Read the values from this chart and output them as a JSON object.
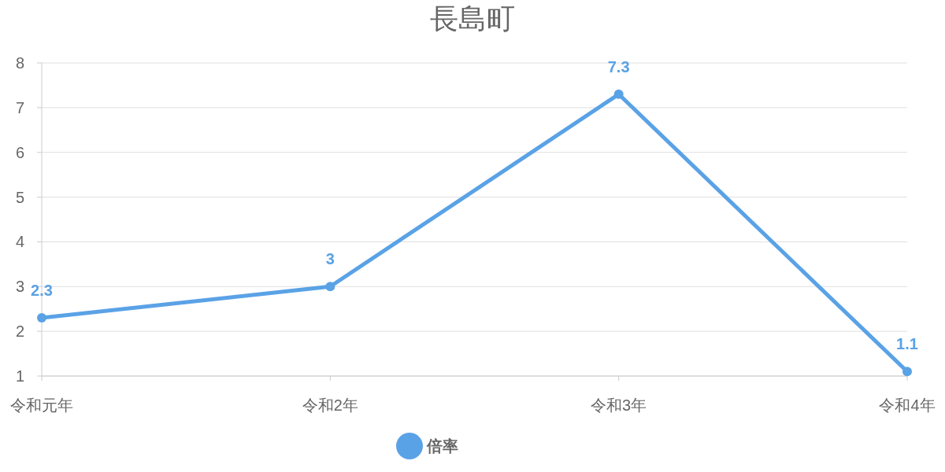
{
  "chart_data": {
    "type": "line",
    "title": "長島町",
    "categories": [
      "令和元年",
      "令和2年",
      "令和3年",
      "令和4年"
    ],
    "series": [
      {
        "name": "倍率",
        "color": "#5aa2e6",
        "values": [
          2.3,
          3,
          7.3,
          1.1
        ]
      }
    ],
    "ylim": [
      1,
      8
    ],
    "yticks": [
      1,
      2,
      3,
      4,
      5,
      6,
      7,
      8
    ],
    "grid": "y",
    "legend": "bottom",
    "data_labels": true,
    "marker": "circle",
    "line_style": "solid"
  }
}
